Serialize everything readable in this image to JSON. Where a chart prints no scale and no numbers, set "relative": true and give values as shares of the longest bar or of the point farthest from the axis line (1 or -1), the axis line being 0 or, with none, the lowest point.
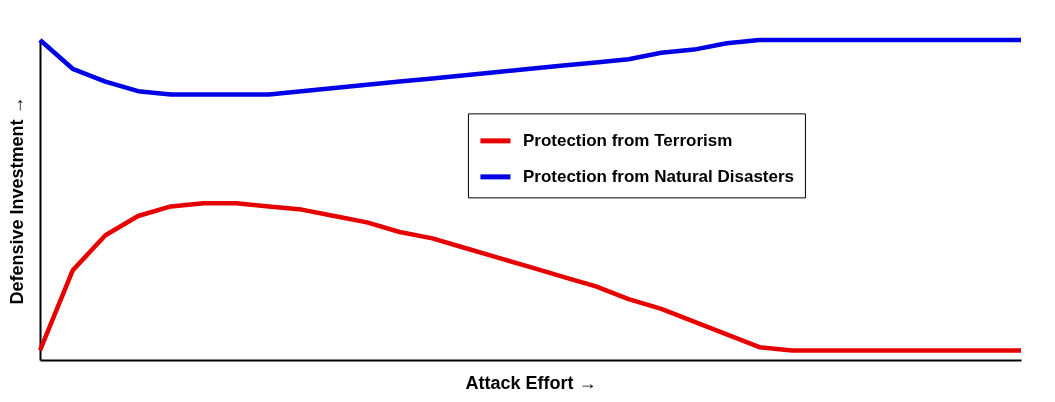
{
  "chart_data": {
    "type": "line",
    "relative": true,
    "xlabel": "Attack Effort  →",
    "ylabel": "Defensive Investment  →",
    "legend": "right",
    "tick_labels": false,
    "categories": [
      null,
      null,
      null,
      null,
      null,
      null,
      null,
      null,
      null,
      null,
      null,
      null,
      null,
      null,
      null,
      null,
      null,
      null,
      null,
      null,
      null,
      null,
      null,
      null,
      null,
      null,
      null,
      null,
      null,
      null,
      null
    ],
    "series": [
      {
        "name": "Protection from Terrorism",
        "color": "#e60000",
        "values": [
          0.03,
          0.28,
          0.39,
          0.45,
          0.48,
          0.49,
          0.49,
          0.48,
          0.47,
          0.45,
          0.43,
          0.4,
          0.38,
          0.35,
          0.32,
          0.29,
          0.26,
          0.23,
          0.19,
          0.16,
          0.12,
          0.08,
          0.04,
          0.03,
          0.03,
          0.03,
          0.03,
          0.03,
          0.03,
          0.03,
          0.03
        ]
      },
      {
        "name": "Protection from Natural Disasters",
        "color": "#0000e6",
        "values": [
          1.0,
          0.91,
          0.87,
          0.84,
          0.83,
          0.83,
          0.83,
          0.83,
          0.84,
          0.85,
          0.86,
          0.87,
          0.88,
          0.89,
          0.9,
          0.91,
          0.92,
          0.93,
          0.94,
          0.96,
          0.97,
          0.99,
          1.0,
          1.0,
          1.0,
          1.0,
          1.0,
          1.0,
          1.0,
          1.0,
          1.0
        ]
      }
    ]
  }
}
